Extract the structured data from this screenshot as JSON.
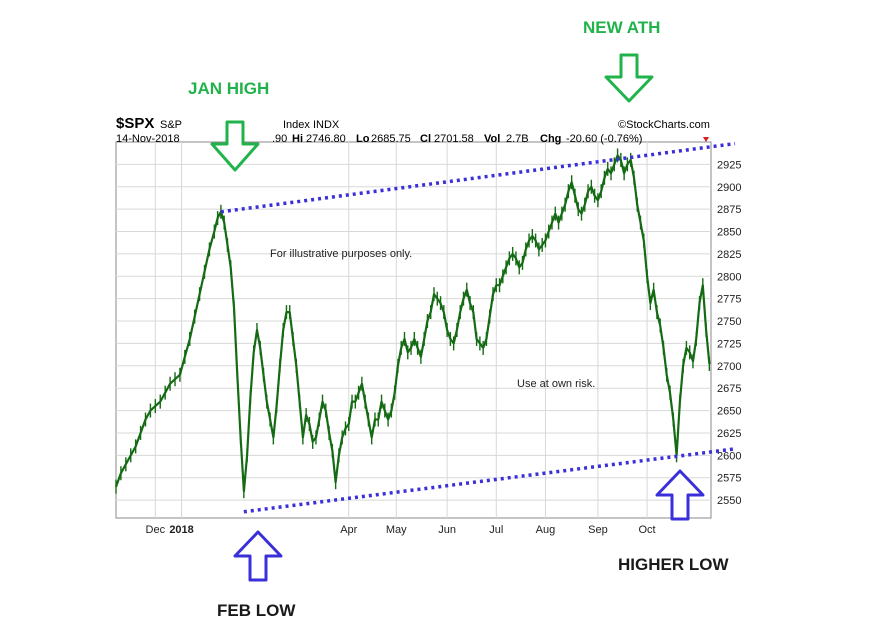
{
  "header": {
    "symbol": "$SPX",
    "name": "S&P",
    "date": "14-Nov-2018",
    "index_label": "Index INDX",
    "open_fragment": ".90",
    "hi_label": "Hi",
    "hi_value": "2746.80",
    "lo_label": "Lo",
    "lo_value": "2685.75",
    "cl_label": "Cl",
    "cl_value": "2701.58",
    "vol_label": "Vol",
    "vol_value": "2.7B",
    "chg_label": "Chg",
    "chg_value": "-20.60 (-0.76%)",
    "source": "©StockCharts.com"
  },
  "notes": {
    "illustrative": "For illustrative purposes only.",
    "risk": "Use at own risk."
  },
  "annotations": {
    "jan_high": "JAN HIGH",
    "new_ath": "NEW ATH",
    "feb_low": "FEB LOW",
    "higher_low": "HIGHER LOW"
  },
  "colors": {
    "price": "#146b14",
    "trendline": "#3a2fd8",
    "arrow_green": "#21b34b",
    "arrow_blue": "#3a2fd8",
    "grid": "#d8d8d8"
  },
  "chart_data": {
    "type": "line",
    "ylim": [
      2530,
      2950
    ],
    "y_ticks": [
      2550,
      2575,
      2600,
      2625,
      2650,
      2675,
      2700,
      2725,
      2750,
      2775,
      2800,
      2825,
      2850,
      2875,
      2900,
      2925
    ],
    "x_ticks": [
      "Dec",
      "2018",
      "Apr",
      "May",
      "Jun",
      "Jul",
      "Aug",
      "Sep",
      "Oct"
    ],
    "x_range_days": [
      0,
      363
    ],
    "x_tick_days": [
      24,
      40,
      142,
      171,
      202,
      232,
      262,
      294,
      324
    ],
    "series": [
      {
        "values": [
          [
            0,
            2565
          ],
          [
            3,
            2580
          ],
          [
            6,
            2590
          ],
          [
            9,
            2600
          ],
          [
            12,
            2610
          ],
          [
            15,
            2625
          ],
          [
            18,
            2640
          ],
          [
            21,
            2650
          ],
          [
            24,
            2655
          ],
          [
            27,
            2660
          ],
          [
            30,
            2670
          ],
          [
            33,
            2680
          ],
          [
            36,
            2685
          ],
          [
            39,
            2690
          ],
          [
            42,
            2710
          ],
          [
            45,
            2730
          ],
          [
            48,
            2755
          ],
          [
            51,
            2780
          ],
          [
            54,
            2805
          ],
          [
            57,
            2830
          ],
          [
            60,
            2850
          ],
          [
            62,
            2865
          ],
          [
            64,
            2872
          ],
          [
            66,
            2860
          ],
          [
            68,
            2835
          ],
          [
            70,
            2810
          ],
          [
            72,
            2765
          ],
          [
            74,
            2690
          ],
          [
            76,
            2620
          ],
          [
            78,
            2560
          ],
          [
            80,
            2600
          ],
          [
            82,
            2665
          ],
          [
            84,
            2715
          ],
          [
            86,
            2740
          ],
          [
            88,
            2720
          ],
          [
            90,
            2690
          ],
          [
            92,
            2660
          ],
          [
            94,
            2640
          ],
          [
            96,
            2620
          ],
          [
            98,
            2655
          ],
          [
            100,
            2700
          ],
          [
            102,
            2740
          ],
          [
            104,
            2760
          ],
          [
            106,
            2760
          ],
          [
            108,
            2730
          ],
          [
            110,
            2700
          ],
          [
            112,
            2660
          ],
          [
            114,
            2620
          ],
          [
            116,
            2645
          ],
          [
            118,
            2635
          ],
          [
            120,
            2615
          ],
          [
            122,
            2620
          ],
          [
            124,
            2640
          ],
          [
            126,
            2660
          ],
          [
            128,
            2650
          ],
          [
            130,
            2625
          ],
          [
            132,
            2605
          ],
          [
            134,
            2570
          ],
          [
            136,
            2600
          ],
          [
            138,
            2620
          ],
          [
            140,
            2630
          ],
          [
            142,
            2635
          ],
          [
            144,
            2660
          ],
          [
            146,
            2660
          ],
          [
            148,
            2670
          ],
          [
            150,
            2680
          ],
          [
            152,
            2660
          ],
          [
            154,
            2640
          ],
          [
            156,
            2620
          ],
          [
            158,
            2640
          ],
          [
            160,
            2640
          ],
          [
            162,
            2660
          ],
          [
            164,
            2650
          ],
          [
            166,
            2640
          ],
          [
            168,
            2650
          ],
          [
            170,
            2670
          ],
          [
            172,
            2700
          ],
          [
            174,
            2720
          ],
          [
            176,
            2730
          ],
          [
            178,
            2715
          ],
          [
            180,
            2720
          ],
          [
            182,
            2730
          ],
          [
            184,
            2720
          ],
          [
            186,
            2710
          ],
          [
            188,
            2730
          ],
          [
            190,
            2750
          ],
          [
            192,
            2760
          ],
          [
            194,
            2780
          ],
          [
            196,
            2775
          ],
          [
            198,
            2770
          ],
          [
            200,
            2760
          ],
          [
            202,
            2740
          ],
          [
            204,
            2730
          ],
          [
            206,
            2725
          ],
          [
            208,
            2740
          ],
          [
            210,
            2760
          ],
          [
            212,
            2775
          ],
          [
            214,
            2785
          ],
          [
            216,
            2770
          ],
          [
            218,
            2760
          ],
          [
            220,
            2730
          ],
          [
            222,
            2725
          ],
          [
            224,
            2720
          ],
          [
            226,
            2730
          ],
          [
            228,
            2755
          ],
          [
            230,
            2780
          ],
          [
            232,
            2790
          ],
          [
            234,
            2790
          ],
          [
            236,
            2800
          ],
          [
            238,
            2810
          ],
          [
            240,
            2820
          ],
          [
            242,
            2825
          ],
          [
            244,
            2820
          ],
          [
            246,
            2810
          ],
          [
            248,
            2815
          ],
          [
            250,
            2830
          ],
          [
            252,
            2840
          ],
          [
            254,
            2845
          ],
          [
            256,
            2840
          ],
          [
            258,
            2830
          ],
          [
            260,
            2835
          ],
          [
            262,
            2840
          ],
          [
            264,
            2850
          ],
          [
            266,
            2860
          ],
          [
            268,
            2870
          ],
          [
            270,
            2860
          ],
          [
            272,
            2870
          ],
          [
            274,
            2880
          ],
          [
            276,
            2895
          ],
          [
            278,
            2905
          ],
          [
            280,
            2890
          ],
          [
            282,
            2875
          ],
          [
            284,
            2870
          ],
          [
            286,
            2880
          ],
          [
            288,
            2895
          ],
          [
            290,
            2900
          ],
          [
            292,
            2890
          ],
          [
            294,
            2885
          ],
          [
            296,
            2895
          ],
          [
            298,
            2910
          ],
          [
            300,
            2920
          ],
          [
            302,
            2915
          ],
          [
            304,
            2925
          ],
          [
            306,
            2935
          ],
          [
            308,
            2930
          ],
          [
            310,
            2915
          ],
          [
            312,
            2925
          ],
          [
            314,
            2930
          ],
          [
            316,
            2910
          ],
          [
            318,
            2880
          ],
          [
            320,
            2860
          ],
          [
            322,
            2840
          ],
          [
            324,
            2800
          ],
          [
            326,
            2770
          ],
          [
            328,
            2785
          ],
          [
            330,
            2760
          ],
          [
            332,
            2745
          ],
          [
            334,
            2720
          ],
          [
            336,
            2690
          ],
          [
            338,
            2670
          ],
          [
            340,
            2640
          ],
          [
            342,
            2600
          ],
          [
            344,
            2660
          ],
          [
            346,
            2700
          ],
          [
            348,
            2720
          ],
          [
            350,
            2715
          ],
          [
            352,
            2705
          ],
          [
            354,
            2730
          ],
          [
            356,
            2770
          ],
          [
            358,
            2790
          ],
          [
            360,
            2740
          ],
          [
            362,
            2702
          ]
        ]
      }
    ],
    "trendlines": [
      {
        "label": "upper",
        "from": [
          64,
          2872
        ],
        "to": [
          363,
          2946
        ]
      },
      {
        "label": "lower",
        "from": [
          78,
          2537
        ],
        "to": [
          363,
          2605
        ]
      }
    ]
  }
}
